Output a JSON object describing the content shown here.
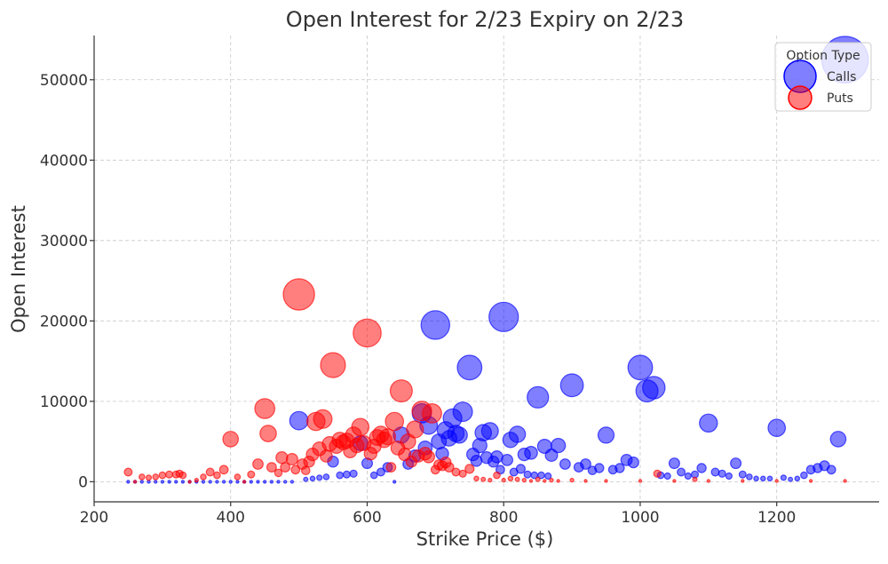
{
  "chart_data": {
    "type": "scatter",
    "title": "Open Interest for 2/23 Expiry on 2/23",
    "xlabel": "Strike Price ($)",
    "ylabel": "Open Interest",
    "xlim": [
      200,
      1350
    ],
    "ylim": [
      -2500,
      55500
    ],
    "xticks": [
      200,
      400,
      600,
      800,
      1000,
      1200
    ],
    "yticks": [
      0,
      10000,
      20000,
      30000,
      40000,
      50000
    ],
    "grid": true,
    "size_encoding": "marker area proportional to open interest",
    "legend": {
      "title": "Option Type",
      "placement": "top-right",
      "entries": [
        {
          "label": "Calls",
          "color": "#0000ff"
        },
        {
          "label": "Puts",
          "color": "#ff0000"
        }
      ]
    },
    "series": [
      {
        "name": "Calls",
        "color": "#0000ff",
        "points": [
          [
            250,
            0
          ],
          [
            260,
            0
          ],
          [
            270,
            0
          ],
          [
            280,
            0
          ],
          [
            290,
            0
          ],
          [
            300,
            0
          ],
          [
            310,
            0
          ],
          [
            320,
            0
          ],
          [
            330,
            0
          ],
          [
            340,
            0
          ],
          [
            350,
            0
          ],
          [
            360,
            0
          ],
          [
            370,
            0
          ],
          [
            380,
            0
          ],
          [
            390,
            0
          ],
          [
            400,
            0
          ],
          [
            410,
            0
          ],
          [
            420,
            0
          ],
          [
            430,
            0
          ],
          [
            440,
            0
          ],
          [
            450,
            0
          ],
          [
            460,
            0
          ],
          [
            470,
            0
          ],
          [
            480,
            0
          ],
          [
            490,
            0
          ],
          [
            500,
            7600
          ],
          [
            510,
            300
          ],
          [
            520,
            400
          ],
          [
            530,
            500
          ],
          [
            540,
            600
          ],
          [
            550,
            2500
          ],
          [
            560,
            800
          ],
          [
            570,
            900
          ],
          [
            580,
            1000
          ],
          [
            590,
            4800
          ],
          [
            600,
            2300
          ],
          [
            610,
            800
          ],
          [
            620,
            1200
          ],
          [
            630,
            1800
          ],
          [
            640,
            0
          ],
          [
            650,
            5800
          ],
          [
            660,
            2200
          ],
          [
            670,
            3200
          ],
          [
            680,
            8500
          ],
          [
            685,
            4200
          ],
          [
            690,
            7000
          ],
          [
            700,
            19500
          ],
          [
            705,
            5000
          ],
          [
            710,
            3500
          ],
          [
            715,
            6400
          ],
          [
            720,
            5400
          ],
          [
            725,
            7900
          ],
          [
            730,
            6000
          ],
          [
            735,
            5800
          ],
          [
            740,
            8700
          ],
          [
            750,
            14200
          ],
          [
            755,
            3400
          ],
          [
            760,
            2600
          ],
          [
            765,
            4500
          ],
          [
            770,
            6100
          ],
          [
            775,
            3000
          ],
          [
            780,
            6300
          ],
          [
            785,
            2500
          ],
          [
            790,
            3100
          ],
          [
            795,
            1500
          ],
          [
            800,
            20500
          ],
          [
            805,
            2700
          ],
          [
            810,
            5200
          ],
          [
            815,
            1200
          ],
          [
            820,
            5900
          ],
          [
            825,
            1600
          ],
          [
            830,
            3400
          ],
          [
            835,
            900
          ],
          [
            840,
            3600
          ],
          [
            845,
            800
          ],
          [
            850,
            10500
          ],
          [
            855,
            800
          ],
          [
            860,
            4400
          ],
          [
            865,
            700
          ],
          [
            870,
            3300
          ],
          [
            880,
            4500
          ],
          [
            890,
            2200
          ],
          [
            900,
            12000
          ],
          [
            910,
            1800
          ],
          [
            920,
            2200
          ],
          [
            930,
            1400
          ],
          [
            940,
            1700
          ],
          [
            950,
            5800
          ],
          [
            960,
            1500
          ],
          [
            970,
            1700
          ],
          [
            980,
            2700
          ],
          [
            990,
            2400
          ],
          [
            1000,
            14200
          ],
          [
            1010,
            11300
          ],
          [
            1020,
            11700
          ],
          [
            1030,
            800
          ],
          [
            1040,
            700
          ],
          [
            1050,
            2300
          ],
          [
            1060,
            1200
          ],
          [
            1070,
            700
          ],
          [
            1080,
            900
          ],
          [
            1090,
            1700
          ],
          [
            1100,
            7300
          ],
          [
            1110,
            1200
          ],
          [
            1120,
            1000
          ],
          [
            1130,
            700
          ],
          [
            1140,
            2300
          ],
          [
            1150,
            900
          ],
          [
            1160,
            600
          ],
          [
            1170,
            400
          ],
          [
            1180,
            400
          ],
          [
            1190,
            400
          ],
          [
            1200,
            6700
          ],
          [
            1210,
            500
          ],
          [
            1220,
            300
          ],
          [
            1230,
            400
          ],
          [
            1240,
            800
          ],
          [
            1250,
            1500
          ],
          [
            1260,
            1700
          ],
          [
            1270,
            2000
          ],
          [
            1280,
            1500
          ],
          [
            1290,
            5300
          ],
          [
            1300,
            52500
          ]
        ]
      },
      {
        "name": "Puts",
        "color": "#ff0000",
        "points": [
          [
            250,
            1200
          ],
          [
            260,
            0
          ],
          [
            270,
            600
          ],
          [
            280,
            500
          ],
          [
            290,
            600
          ],
          [
            300,
            800
          ],
          [
            310,
            900
          ],
          [
            320,
            900
          ],
          [
            325,
            1000
          ],
          [
            330,
            800
          ],
          [
            340,
            0
          ],
          [
            350,
            200
          ],
          [
            360,
            600
          ],
          [
            370,
            1200
          ],
          [
            380,
            800
          ],
          [
            390,
            1500
          ],
          [
            400,
            5300
          ],
          [
            410,
            600
          ],
          [
            420,
            0
          ],
          [
            430,
            900
          ],
          [
            440,
            2200
          ],
          [
            450,
            9100
          ],
          [
            455,
            6000
          ],
          [
            460,
            1800
          ],
          [
            470,
            1100
          ],
          [
            475,
            3000
          ],
          [
            480,
            1800
          ],
          [
            490,
            2800
          ],
          [
            495,
            1500
          ],
          [
            500,
            23300
          ],
          [
            505,
            2200
          ],
          [
            510,
            1400
          ],
          [
            515,
            2500
          ],
          [
            520,
            3400
          ],
          [
            525,
            7500
          ],
          [
            530,
            4100
          ],
          [
            535,
            7800
          ],
          [
            540,
            3200
          ],
          [
            545,
            4700
          ],
          [
            550,
            14500
          ],
          [
            555,
            4400
          ],
          [
            560,
            5200
          ],
          [
            565,
            4900
          ],
          [
            570,
            5100
          ],
          [
            575,
            3800
          ],
          [
            580,
            5800
          ],
          [
            585,
            4500
          ],
          [
            590,
            6800
          ],
          [
            595,
            4800
          ],
          [
            600,
            18500
          ],
          [
            605,
            3500
          ],
          [
            610,
            4400
          ],
          [
            615,
            5500
          ],
          [
            620,
            5900
          ],
          [
            625,
            5200
          ],
          [
            630,
            5600
          ],
          [
            635,
            1800
          ],
          [
            640,
            7500
          ],
          [
            645,
            4200
          ],
          [
            650,
            11300
          ],
          [
            655,
            3400
          ],
          [
            660,
            5000
          ],
          [
            665,
            2500
          ],
          [
            670,
            6500
          ],
          [
            675,
            3200
          ],
          [
            680,
            8800
          ],
          [
            685,
            3500
          ],
          [
            690,
            3100
          ],
          [
            695,
            8500
          ],
          [
            700,
            1500
          ],
          [
            705,
            2100
          ],
          [
            710,
            2000
          ],
          [
            715,
            2400
          ],
          [
            720,
            1800
          ],
          [
            730,
            1200
          ],
          [
            740,
            1000
          ],
          [
            750,
            1600
          ],
          [
            760,
            400
          ],
          [
            770,
            300
          ],
          [
            780,
            200
          ],
          [
            790,
            800
          ],
          [
            800,
            200
          ],
          [
            810,
            400
          ],
          [
            820,
            300
          ],
          [
            830,
            200
          ],
          [
            840,
            100
          ],
          [
            850,
            300
          ],
          [
            860,
            100
          ],
          [
            870,
            200
          ],
          [
            880,
            100
          ],
          [
            900,
            200
          ],
          [
            920,
            100
          ],
          [
            950,
            100
          ],
          [
            1000,
            100
          ],
          [
            1025,
            1000
          ],
          [
            1050,
            100
          ],
          [
            1080,
            300
          ],
          [
            1100,
            100
          ],
          [
            1150,
            100
          ],
          [
            1200,
            100
          ],
          [
            1250,
            100
          ],
          [
            1300,
            100
          ]
        ]
      }
    ]
  }
}
